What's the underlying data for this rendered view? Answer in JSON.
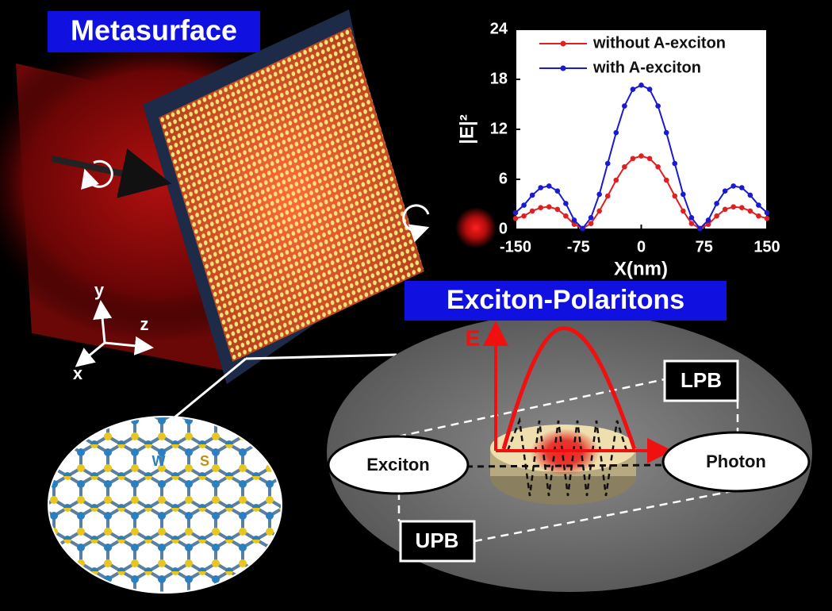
{
  "labels": {
    "metasurface": "Metasurface",
    "exciton_polaritons": "Exciton-Polaritons",
    "axis_y": "y",
    "axis_z": "z",
    "axis_x": "x",
    "tungsten": "W",
    "sulfur": "S",
    "exciton": "Exciton",
    "photon": "Photon",
    "lpb": "LPB",
    "upb": "UPB",
    "energy": "E"
  },
  "chart_data": {
    "type": "line",
    "xlabel": "X(nm)",
    "ylabel": "|E|²",
    "x": [
      -150,
      -140,
      -130,
      -120,
      -110,
      -100,
      -90,
      -80,
      -70,
      -60,
      -50,
      -40,
      -30,
      -20,
      -10,
      0,
      10,
      20,
      30,
      40,
      50,
      60,
      70,
      80,
      90,
      100,
      110,
      120,
      130,
      140,
      150
    ],
    "series": [
      {
        "name": "without A-exciton",
        "color": "#e02020",
        "values": [
          1.3,
          1.6,
          2.2,
          2.6,
          2.7,
          2.4,
          1.6,
          0.6,
          0.1,
          0.7,
          2.2,
          4.0,
          5.9,
          7.5,
          8.5,
          8.8,
          8.5,
          7.5,
          5.9,
          4.0,
          2.2,
          0.7,
          0.1,
          0.6,
          1.6,
          2.4,
          2.7,
          2.6,
          2.2,
          1.6,
          1.3
        ]
      },
      {
        "name": "with A-exciton",
        "color": "#1a1ad0",
        "values": [
          2.0,
          2.9,
          4.1,
          5.0,
          5.2,
          4.6,
          3.1,
          1.1,
          0.1,
          1.4,
          4.2,
          7.9,
          11.6,
          14.8,
          16.8,
          17.3,
          16.8,
          14.8,
          11.6,
          7.9,
          4.2,
          1.4,
          0.1,
          1.1,
          3.1,
          4.6,
          5.2,
          5.0,
          4.1,
          2.9,
          2.0
        ]
      }
    ],
    "xlim": [
      -150,
      150
    ],
    "xticks": [
      -150,
      -75,
      0,
      75,
      150
    ],
    "ylim": [
      0,
      24
    ],
    "yticks": [
      0,
      6,
      12,
      18,
      24
    ]
  }
}
